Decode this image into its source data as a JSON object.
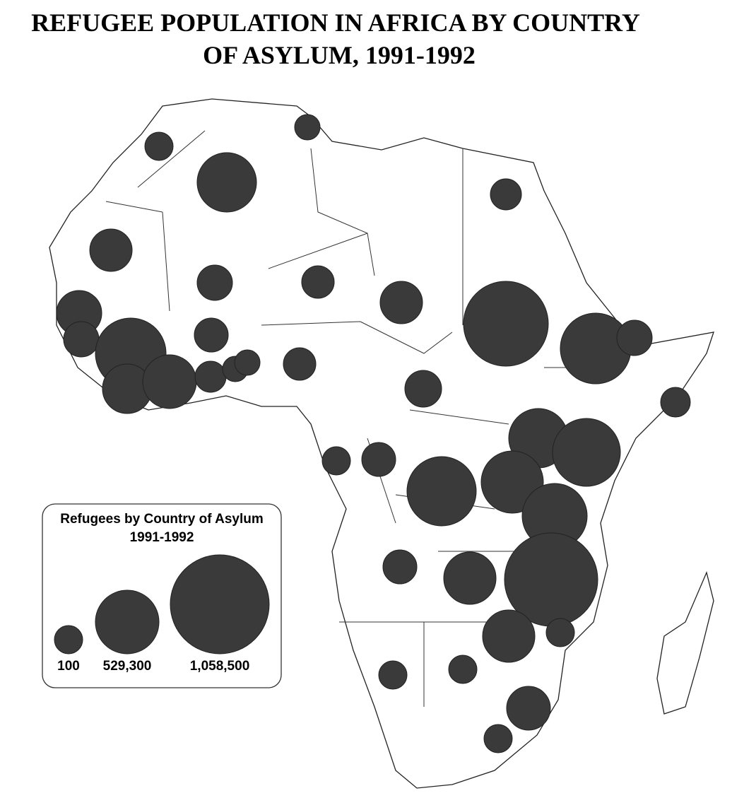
{
  "title": [
    "REFUGEE POPULATION IN AFRICA  BY COUNTRY",
    "OF ASYLUM, 1991-1992"
  ],
  "legend": {
    "title": [
      "Refugees by Country of Asylum",
      "1991-1992"
    ],
    "values": [
      100,
      {
        "value": 529300,
        "label": "529,300"
      },
      {
        "value": 1058500,
        "label": "1,058,500"
      }
    ]
  }
}
